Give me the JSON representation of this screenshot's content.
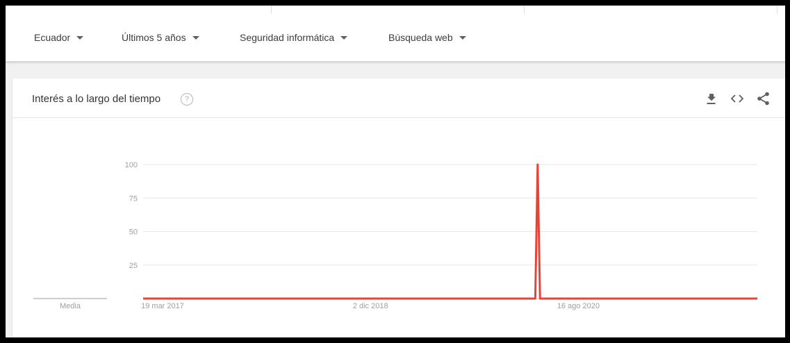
{
  "filters": [
    {
      "label": "Ecuador"
    },
    {
      "label": "Últimos 5 años"
    },
    {
      "label": "Seguridad informática"
    },
    {
      "label": "Búsqueda web"
    }
  ],
  "card": {
    "title": "Interés a lo largo del tiempo",
    "help_icon": "help-circle-icon",
    "actions": [
      "download-icon",
      "embed-code-icon",
      "share-icon"
    ]
  },
  "colors": {
    "series": "#ea4335",
    "grid": "#e6e6e6",
    "axis_text": "#9e9e9e"
  },
  "chart_data": {
    "type": "line",
    "y_ticks": [
      "25",
      "50",
      "75",
      "100"
    ],
    "ylim": [
      0,
      100
    ],
    "x_tick_labels": [
      "19 mar 2017",
      "2 dic 2018",
      "16 ago 2020"
    ],
    "average_label": "Media",
    "grid": true,
    "series": [
      {
        "points": [
          {
            "week": 0,
            "value": 0
          },
          {
            "week": 166,
            "value": 0
          },
          {
            "week": 167,
            "value": 100
          },
          {
            "week": 168,
            "value": 0
          },
          {
            "week": 260,
            "value": 0
          }
        ]
      }
    ],
    "x_tick_weeks": [
      0,
      88,
      176
    ],
    "x_range_weeks": [
      0,
      260
    ]
  }
}
